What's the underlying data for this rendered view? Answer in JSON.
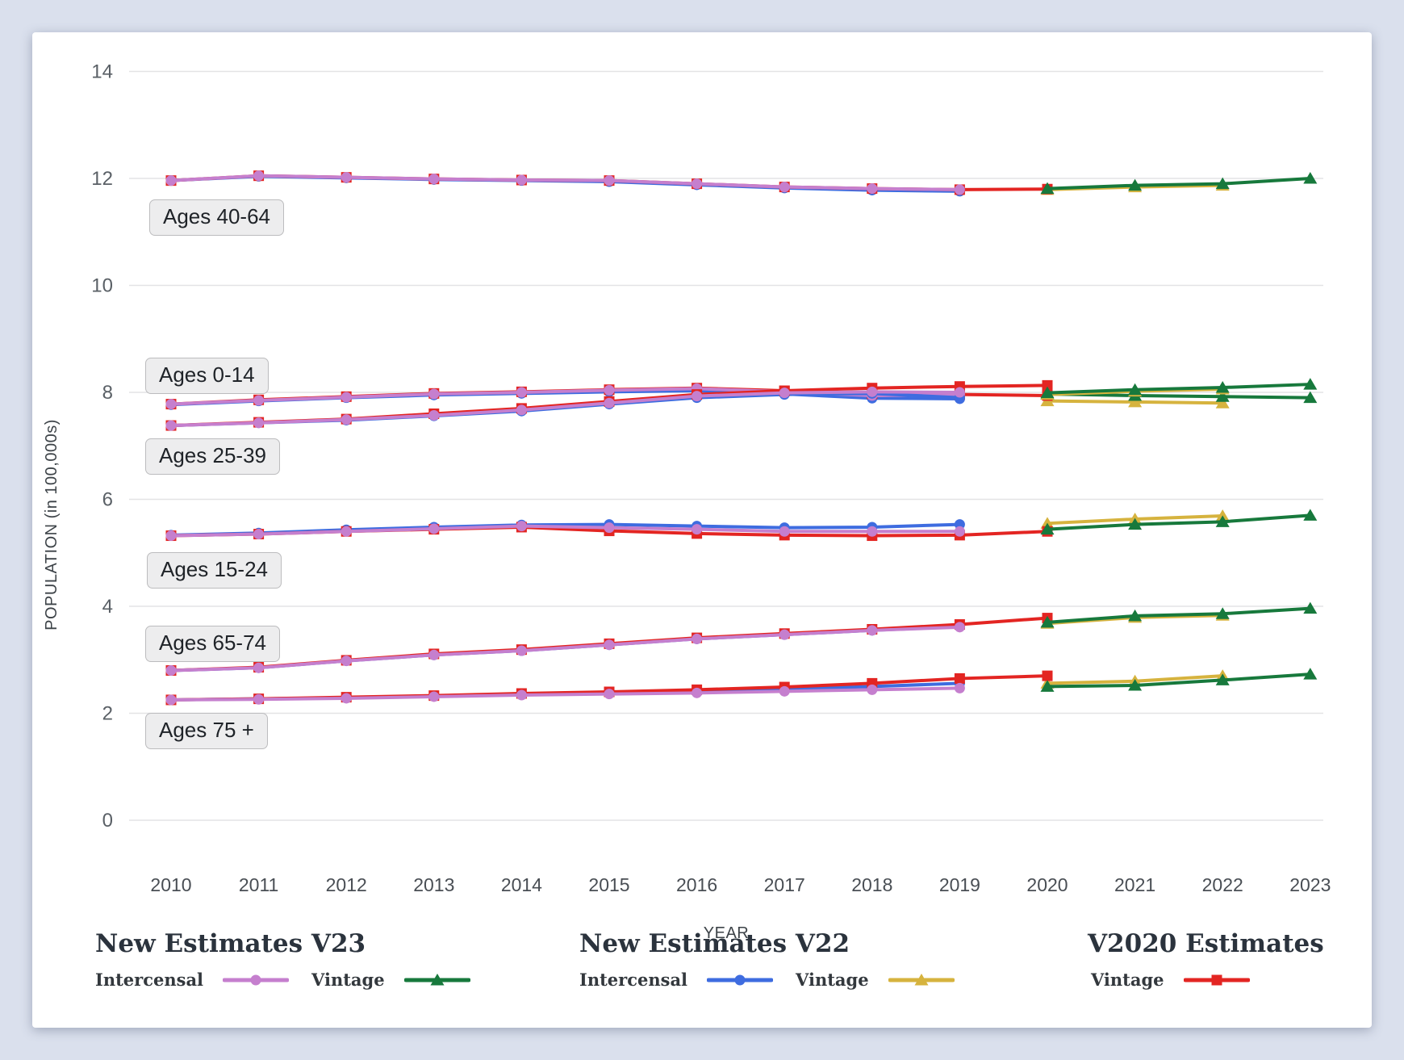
{
  "axes": {
    "x_label": "YEAR",
    "y_label": "POPULATION (in 100,000s)",
    "x_ticks": [
      "2010",
      "2011",
      "2012",
      "2013",
      "2014",
      "2015",
      "2016",
      "2017",
      "2018",
      "2019",
      "2020",
      "2021",
      "2022",
      "2023"
    ],
    "y_ticks": [
      "0",
      "2",
      "4",
      "6",
      "8",
      "10",
      "12",
      "14"
    ]
  },
  "legend": {
    "groups": [
      {
        "title": "New Estimates V23",
        "items": [
          {
            "label": "Intercensal",
            "series": "v23_intercensal"
          },
          {
            "label": "Vintage",
            "series": "v23_vintage"
          }
        ]
      },
      {
        "title": "New Estimates V22",
        "items": [
          {
            "label": "Intercensal",
            "series": "v22_intercensal"
          },
          {
            "label": "Vintage",
            "series": "v22_vintage"
          }
        ]
      },
      {
        "title": "V2020 Estimates",
        "items": [
          {
            "label": "Vintage",
            "series": "v2020_vintage"
          }
        ]
      }
    ]
  },
  "series_styles": {
    "v22_intercensal": {
      "color": "#3e6ce0",
      "marker": "circle"
    },
    "v22_vintage": {
      "color": "#d6b33e",
      "marker": "triangle"
    },
    "v2020_vintage": {
      "color": "#e32522",
      "marker": "square"
    },
    "v23_intercensal": {
      "color": "#c57fce",
      "marker": "circle"
    },
    "v23_vintage": {
      "color": "#17793c",
      "marker": "triangle"
    }
  },
  "chart_data": {
    "type": "line",
    "title": "",
    "xlabel": "YEAR",
    "ylabel": "POPULATION (in 100,000s)",
    "xlim": [
      2010,
      2023
    ],
    "ylim": [
      0,
      14
    ],
    "grid": "horizontal",
    "legend_position": "bottom",
    "groups": [
      {
        "label": "Ages 40-64",
        "series": [
          {
            "id": "v22_intercensal",
            "x": [
              2010,
              2011,
              2012,
              2013,
              2014,
              2015,
              2016,
              2017,
              2018,
              2019
            ],
            "values": [
              11.96,
              12.04,
              12.01,
              11.98,
              11.96,
              11.94,
              11.88,
              11.82,
              11.78,
              11.76
            ]
          },
          {
            "id": "v22_vintage",
            "x": [
              2020,
              2021,
              2022
            ],
            "values": [
              11.79,
              11.84,
              11.87
            ]
          },
          {
            "id": "v2020_vintage",
            "x": [
              2010,
              2011,
              2012,
              2013,
              2014,
              2015,
              2016,
              2017,
              2018,
              2019,
              2020
            ],
            "values": [
              11.96,
              12.05,
              12.02,
              11.99,
              11.97,
              11.96,
              11.9,
              11.84,
              11.81,
              11.79,
              11.8
            ]
          },
          {
            "id": "v23_intercensal",
            "x": [
              2010,
              2011,
              2012,
              2013,
              2014,
              2015,
              2016,
              2017,
              2018,
              2019
            ],
            "values": [
              11.96,
              12.05,
              12.02,
              11.99,
              11.97,
              11.96,
              11.9,
              11.84,
              11.81,
              11.79
            ]
          },
          {
            "id": "v23_vintage",
            "x": [
              2020,
              2021,
              2022,
              2023
            ],
            "values": [
              11.81,
              11.87,
              11.9,
              12.0
            ]
          }
        ]
      },
      {
        "label": "Ages 0-14",
        "series": [
          {
            "id": "v22_intercensal",
            "x": [
              2010,
              2011,
              2012,
              2013,
              2014,
              2015,
              2016,
              2017,
              2018,
              2019
            ],
            "values": [
              7.77,
              7.84,
              7.9,
              7.95,
              7.98,
              8.01,
              8.03,
              7.97,
              7.89,
              7.88
            ]
          },
          {
            "id": "v22_vintage",
            "x": [
              2020,
              2021,
              2022
            ],
            "values": [
              7.84,
              7.82,
              7.8
            ]
          },
          {
            "id": "v2020_vintage",
            "x": [
              2010,
              2011,
              2012,
              2013,
              2014,
              2015,
              2016,
              2017,
              2018,
              2019,
              2020
            ],
            "values": [
              7.78,
              7.86,
              7.92,
              7.98,
              8.01,
              8.05,
              8.08,
              8.03,
              7.97,
              7.96,
              7.94
            ]
          },
          {
            "id": "v23_intercensal",
            "x": [
              2010,
              2011,
              2012,
              2013,
              2014,
              2015,
              2016,
              2017,
              2018,
              2019
            ],
            "values": [
              7.78,
              7.85,
              7.91,
              7.97,
              8.0,
              8.04,
              8.07,
              8.01,
              7.94,
              7.96
            ]
          },
          {
            "id": "v23_vintage",
            "x": [
              2020,
              2021,
              2022,
              2023
            ],
            "values": [
              7.97,
              7.94,
              7.92,
              7.9
            ]
          }
        ]
      },
      {
        "label": "Ages 25-39",
        "series": [
          {
            "id": "v22_intercensal",
            "x": [
              2010,
              2011,
              2012,
              2013,
              2014,
              2015,
              2016,
              2017,
              2018,
              2019
            ],
            "values": [
              7.38,
              7.43,
              7.48,
              7.56,
              7.65,
              7.78,
              7.9,
              7.96,
              7.98,
              7.9
            ]
          },
          {
            "id": "v22_vintage",
            "x": [
              2020,
              2021,
              2022
            ],
            "values": [
              7.96,
              8.02,
              8.06
            ]
          },
          {
            "id": "v2020_vintage",
            "x": [
              2010,
              2011,
              2012,
              2013,
              2014,
              2015,
              2016,
              2017,
              2018,
              2019,
              2020
            ],
            "values": [
              7.38,
              7.44,
              7.5,
              7.6,
              7.7,
              7.83,
              7.96,
              8.03,
              8.08,
              8.11,
              8.13
            ]
          },
          {
            "id": "v23_intercensal",
            "x": [
              2010,
              2011,
              2012,
              2013,
              2014,
              2015,
              2016,
              2017,
              2018,
              2019
            ],
            "values": [
              7.38,
              7.43,
              7.49,
              7.57,
              7.67,
              7.8,
              7.93,
              7.99,
              8.01,
              8.0
            ]
          },
          {
            "id": "v23_vintage",
            "x": [
              2020,
              2021,
              2022,
              2023
            ],
            "values": [
              7.99,
              8.05,
              8.09,
              8.15
            ]
          }
        ]
      },
      {
        "label": "Ages 15-24",
        "series": [
          {
            "id": "v22_intercensal",
            "x": [
              2010,
              2011,
              2012,
              2013,
              2014,
              2015,
              2016,
              2017,
              2018,
              2019
            ],
            "values": [
              5.33,
              5.37,
              5.43,
              5.48,
              5.52,
              5.53,
              5.5,
              5.47,
              5.48,
              5.53
            ]
          },
          {
            "id": "v22_vintage",
            "x": [
              2020,
              2021,
              2022
            ],
            "values": [
              5.55,
              5.63,
              5.69
            ]
          },
          {
            "id": "v2020_vintage",
            "x": [
              2010,
              2011,
              2012,
              2013,
              2014,
              2015,
              2016,
              2017,
              2018,
              2019,
              2020
            ],
            "values": [
              5.32,
              5.35,
              5.4,
              5.44,
              5.48,
              5.41,
              5.36,
              5.33,
              5.32,
              5.33,
              5.4
            ]
          },
          {
            "id": "v23_intercensal",
            "x": [
              2010,
              2011,
              2012,
              2013,
              2014,
              2015,
              2016,
              2017,
              2018,
              2019
            ],
            "values": [
              5.32,
              5.35,
              5.4,
              5.45,
              5.5,
              5.47,
              5.44,
              5.4,
              5.4,
              5.4
            ]
          },
          {
            "id": "v23_vintage",
            "x": [
              2020,
              2021,
              2022,
              2023
            ],
            "values": [
              5.44,
              5.53,
              5.58,
              5.7
            ]
          }
        ]
      },
      {
        "label": "Ages 65-74",
        "series": [
          {
            "id": "v22_intercensal",
            "x": [
              2010,
              2011,
              2012,
              2013,
              2014,
              2015,
              2016,
              2017,
              2018,
              2019
            ],
            "values": [
              2.8,
              2.85,
              2.98,
              3.09,
              3.17,
              3.28,
              3.39,
              3.47,
              3.55,
              3.62
            ]
          },
          {
            "id": "v22_vintage",
            "x": [
              2020,
              2021,
              2022
            ],
            "values": [
              3.68,
              3.79,
              3.83
            ]
          },
          {
            "id": "v2020_vintage",
            "x": [
              2010,
              2011,
              2012,
              2013,
              2014,
              2015,
              2016,
              2017,
              2018,
              2019,
              2020
            ],
            "values": [
              2.8,
              2.86,
              2.99,
              3.11,
              3.19,
              3.3,
              3.41,
              3.49,
              3.57,
              3.66,
              3.78
            ]
          },
          {
            "id": "v23_intercensal",
            "x": [
              2010,
              2011,
              2012,
              2013,
              2014,
              2015,
              2016,
              2017,
              2018,
              2019
            ],
            "values": [
              2.8,
              2.85,
              2.98,
              3.09,
              3.17,
              3.28,
              3.39,
              3.47,
              3.55,
              3.61
            ]
          },
          {
            "id": "v23_vintage",
            "x": [
              2020,
              2021,
              2022,
              2023
            ],
            "values": [
              3.7,
              3.82,
              3.86,
              3.96
            ]
          }
        ]
      },
      {
        "label": "Ages 75 +",
        "series": [
          {
            "id": "v22_intercensal",
            "x": [
              2010,
              2011,
              2012,
              2013,
              2014,
              2015,
              2016,
              2017,
              2018,
              2019
            ],
            "values": [
              2.25,
              2.27,
              2.29,
              2.32,
              2.35,
              2.38,
              2.41,
              2.45,
              2.5,
              2.56
            ]
          },
          {
            "id": "v22_vintage",
            "x": [
              2020,
              2021,
              2022
            ],
            "values": [
              2.56,
              2.6,
              2.7
            ]
          },
          {
            "id": "v2020_vintage",
            "x": [
              2010,
              2011,
              2012,
              2013,
              2014,
              2015,
              2016,
              2017,
              2018,
              2019,
              2020
            ],
            "values": [
              2.25,
              2.27,
              2.3,
              2.33,
              2.37,
              2.4,
              2.44,
              2.49,
              2.56,
              2.65,
              2.7
            ]
          },
          {
            "id": "v23_intercensal",
            "x": [
              2010,
              2011,
              2012,
              2013,
              2014,
              2015,
              2016,
              2017,
              2018,
              2019
            ],
            "values": [
              2.25,
              2.26,
              2.28,
              2.31,
              2.34,
              2.36,
              2.38,
              2.41,
              2.44,
              2.47
            ]
          },
          {
            "id": "v23_vintage",
            "x": [
              2020,
              2021,
              2022,
              2023
            ],
            "values": [
              2.5,
              2.52,
              2.62,
              2.73
            ]
          }
        ]
      }
    ]
  }
}
